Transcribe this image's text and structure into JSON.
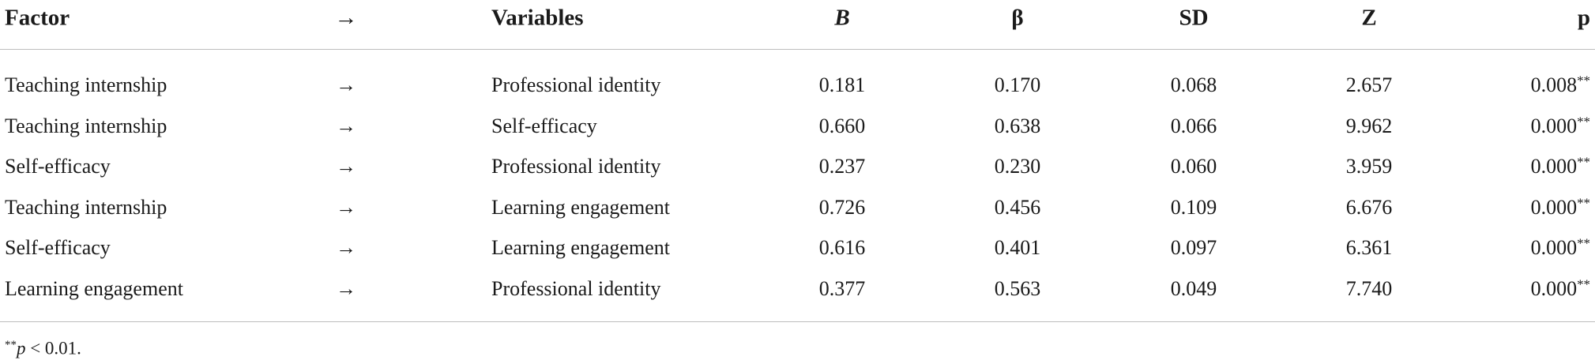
{
  "table": {
    "header": [
      "Factor",
      "→",
      "Variables",
      "B",
      "β",
      "SD",
      "Z",
      "p"
    ],
    "rows": [
      [
        "Teaching internship",
        "→",
        "Professional identity",
        "0.181",
        "0.170",
        "0.068",
        "2.657",
        {
          "value": "0.008",
          "marker": "**"
        }
      ],
      [
        "Teaching internship",
        "→",
        "Self-efficacy",
        "0.660",
        "0.638",
        "0.066",
        "9.962",
        {
          "value": "0.000",
          "marker": "**"
        }
      ],
      [
        "Self-efficacy",
        "→",
        "Professional identity",
        "0.237",
        "0.230",
        "0.060",
        "3.959",
        {
          "value": "0.000",
          "marker": "**"
        }
      ],
      [
        "Teaching internship",
        "→",
        "Learning engagement",
        "0.726",
        "0.456",
        "0.109",
        "6.676",
        {
          "value": "0.000",
          "marker": "**"
        }
      ],
      [
        "Self-efficacy",
        "→",
        "Learning engagement",
        "0.616",
        "0.401",
        "0.097",
        "6.361",
        {
          "value": "0.000",
          "marker": "**"
        }
      ],
      [
        "Learning engagement",
        "→",
        "Professional identity",
        "0.377",
        "0.563",
        "0.049",
        "7.740",
        {
          "value": "0.000",
          "marker": "**"
        }
      ]
    ]
  },
  "footnote": {
    "marker": "**",
    "symbol": "p",
    "text": " < 0.01."
  }
}
